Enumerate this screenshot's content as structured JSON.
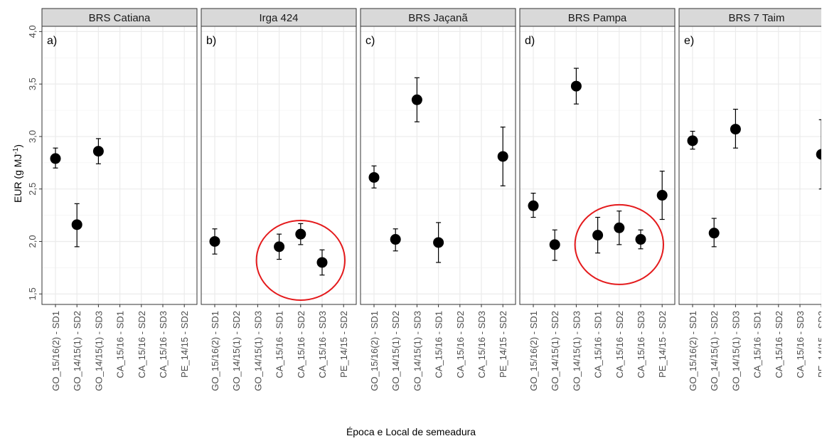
{
  "chart_data": {
    "type": "scatter",
    "xlabel": "Época e Local de semeadura",
    "ylabel": "EUR (g MJ",
    "ylabel_superscript": "-1",
    "ylabel_close": ")",
    "ylim": [
      1.4,
      4.05
    ],
    "yticks": [
      "1,5",
      "2,0",
      "2,5",
      "3,0",
      "3,5",
      "4,0"
    ],
    "ytick_values": [
      1.5,
      2.0,
      2.5,
      3.0,
      3.5,
      4.0
    ],
    "grid": true,
    "categories": [
      "GO_15/16(2) - SD1",
      "GO_14/15(1) - SD2",
      "GO_14/15(1) - SD3",
      "CA_15/16 - SD1",
      "CA_15/16 - SD2",
      "CA_15/16 - SD3",
      "PE_14/15 - SD2"
    ],
    "point_color": "#000000",
    "highlight_color": "#e41a1c",
    "panels": [
      {
        "title": "BRS Catiana",
        "tag": "a)",
        "points": [
          {
            "category": "GO_15/16(2) - SD1",
            "y": 2.79,
            "ymin": 2.7,
            "ymax": 2.89
          },
          {
            "category": "GO_14/15(1) - SD2",
            "y": 2.16,
            "ymin": 1.95,
            "ymax": 2.36
          },
          {
            "category": "GO_14/15(1) - SD3",
            "y": 2.86,
            "ymin": 2.74,
            "ymax": 2.98
          }
        ]
      },
      {
        "title": "Irga 424",
        "tag": "b)",
        "points": [
          {
            "category": "GO_15/16(2) - SD1",
            "y": 2.0,
            "ymin": 1.88,
            "ymax": 2.12
          },
          {
            "category": "CA_15/16 - SD1",
            "y": 1.95,
            "ymin": 1.83,
            "ymax": 2.07
          },
          {
            "category": "CA_15/16 - SD2",
            "y": 2.07,
            "ymin": 1.97,
            "ymax": 2.17
          },
          {
            "category": "CA_15/16 - SD3",
            "y": 1.8,
            "ymin": 1.68,
            "ymax": 1.92
          }
        ],
        "highlight": {
          "from": "CA_15/16 - SD1",
          "to": "CA_15/16 - SD3",
          "y_center": 1.82
        }
      },
      {
        "title": "BRS Jaçanã",
        "tag": "c)",
        "points": [
          {
            "category": "GO_15/16(2) - SD1",
            "y": 2.61,
            "ymin": 2.51,
            "ymax": 2.72
          },
          {
            "category": "GO_14/15(1) - SD2",
            "y": 2.02,
            "ymin": 1.91,
            "ymax": 2.12
          },
          {
            "category": "GO_14/15(1) - SD3",
            "y": 3.35,
            "ymin": 3.14,
            "ymax": 3.56
          },
          {
            "category": "CA_15/16 - SD1",
            "y": 1.99,
            "ymin": 1.8,
            "ymax": 2.18
          },
          {
            "category": "PE_14/15 - SD2",
            "y": 2.81,
            "ymin": 2.53,
            "ymax": 3.09
          }
        ]
      },
      {
        "title": "BRS Pampa",
        "tag": "d)",
        "points": [
          {
            "category": "GO_15/16(2) - SD1",
            "y": 2.34,
            "ymin": 2.23,
            "ymax": 2.46
          },
          {
            "category": "GO_14/15(1) - SD2",
            "y": 1.97,
            "ymin": 1.82,
            "ymax": 2.11
          },
          {
            "category": "GO_14/15(1) - SD3",
            "y": 3.48,
            "ymin": 3.31,
            "ymax": 3.65
          },
          {
            "category": "CA_15/16 - SD1",
            "y": 2.06,
            "ymin": 1.89,
            "ymax": 2.23
          },
          {
            "category": "CA_15/16 - SD2",
            "y": 2.13,
            "ymin": 1.97,
            "ymax": 2.29
          },
          {
            "category": "CA_15/16 - SD3",
            "y": 2.02,
            "ymin": 1.93,
            "ymax": 2.11
          },
          {
            "category": "PE_14/15 - SD2",
            "y": 2.44,
            "ymin": 2.21,
            "ymax": 2.67
          }
        ],
        "highlight": {
          "from": "CA_15/16 - SD1",
          "to": "CA_15/16 - SD3",
          "y_center": 1.97
        }
      },
      {
        "title": "BRS 7 Taim",
        "tag": "e)",
        "points": [
          {
            "category": "GO_15/16(2) - SD1",
            "y": 2.96,
            "ymin": 2.88,
            "ymax": 3.05
          },
          {
            "category": "GO_14/15(1) - SD2",
            "y": 2.08,
            "ymin": 1.95,
            "ymax": 2.22
          },
          {
            "category": "GO_14/15(1) - SD3",
            "y": 3.07,
            "ymin": 2.89,
            "ymax": 3.26
          },
          {
            "category": "PE_14/15 - SD2",
            "y": 2.83,
            "ymin": 2.5,
            "ymax": 3.16
          }
        ]
      }
    ]
  }
}
